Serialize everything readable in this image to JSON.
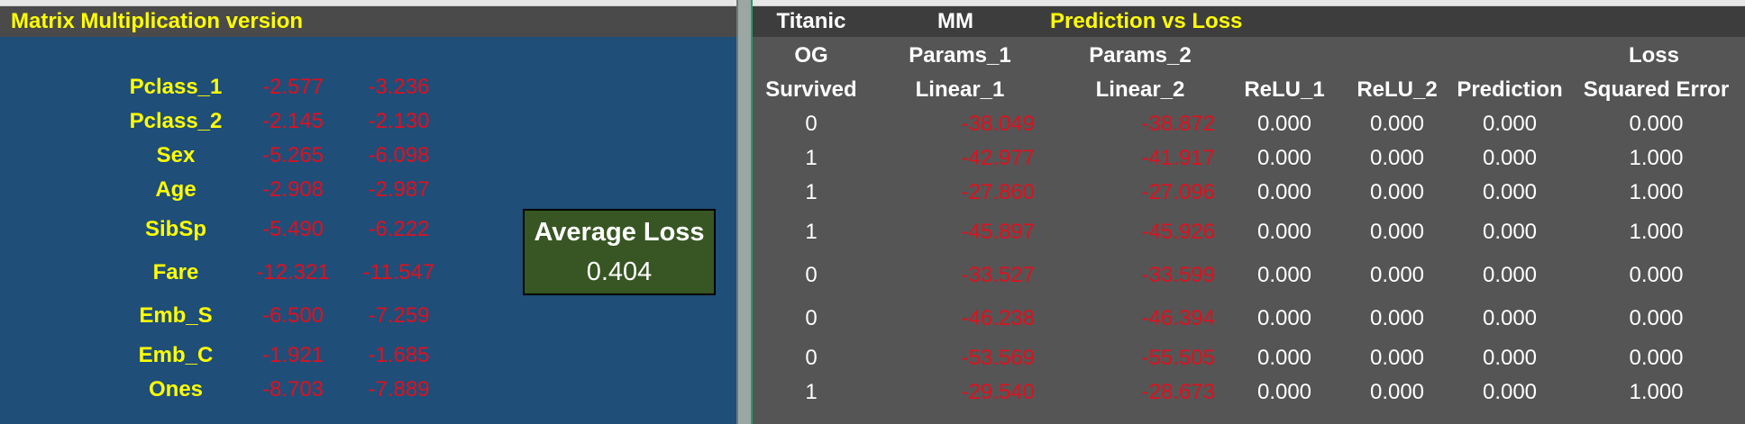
{
  "left": {
    "title": "Matrix Multiplication version",
    "features": [
      {
        "name": "Pclass_1",
        "p1": "-2.577",
        "p2": "-3.236"
      },
      {
        "name": "Pclass_2",
        "p1": "-2.145",
        "p2": "-2.130"
      },
      {
        "name": "Sex",
        "p1": "-5.265",
        "p2": "-6.098"
      },
      {
        "name": "Age",
        "p1": "-2.908",
        "p2": "-2.987"
      },
      {
        "name": "SibSp",
        "p1": "-5.490",
        "p2": "-6.222"
      },
      {
        "name": "Fare",
        "p1": "-12.321",
        "p2": "-11.547"
      },
      {
        "name": "Emb_S",
        "p1": "-6.500",
        "p2": "-7.259"
      },
      {
        "name": "Emb_C",
        "p1": "-1.921",
        "p2": "-1.685"
      },
      {
        "name": "Ones",
        "p1": "-8.703",
        "p2": "-7.889"
      }
    ],
    "average_loss": {
      "label": "Average Loss",
      "value": "0.404"
    }
  },
  "right": {
    "header": {
      "titanic": "Titanic",
      "mm": "MM",
      "title": "Prediction vs Loss"
    },
    "col_top": {
      "og": "OG",
      "params1": "Params_1",
      "params2": "Params_2",
      "loss": "Loss"
    },
    "col_bottom": {
      "survived": "Survived",
      "linear1": "Linear_1",
      "linear2": "Linear_2",
      "relu1": "ReLU_1",
      "relu2": "ReLU_2",
      "prediction": "Prediction",
      "sqerr": "Squared Error"
    },
    "rows": [
      {
        "survived": "0",
        "linear1": "-38.049",
        "linear2": "-38.872",
        "relu1": "0.000",
        "relu2": "0.000",
        "prediction": "0.000",
        "loss": "0.000"
      },
      {
        "survived": "1",
        "linear1": "-42.977",
        "linear2": "-41.917",
        "relu1": "0.000",
        "relu2": "0.000",
        "prediction": "0.000",
        "loss": "1.000"
      },
      {
        "survived": "1",
        "linear1": "-27.860",
        "linear2": "-27.096",
        "relu1": "0.000",
        "relu2": "0.000",
        "prediction": "0.000",
        "loss": "1.000"
      },
      {
        "survived": "1",
        "linear1": "-45.897",
        "linear2": "-45.926",
        "relu1": "0.000",
        "relu2": "0.000",
        "prediction": "0.000",
        "loss": "1.000"
      },
      {
        "survived": "0",
        "linear1": "-33.527",
        "linear2": "-33.599",
        "relu1": "0.000",
        "relu2": "0.000",
        "prediction": "0.000",
        "loss": "0.000"
      },
      {
        "survived": "0",
        "linear1": "-46.238",
        "linear2": "-46.394",
        "relu1": "0.000",
        "relu2": "0.000",
        "prediction": "0.000",
        "loss": "0.000"
      },
      {
        "survived": "0",
        "linear1": "-53.569",
        "linear2": "-55.505",
        "relu1": "0.000",
        "relu2": "0.000",
        "prediction": "0.000",
        "loss": "0.000"
      },
      {
        "survived": "1",
        "linear1": "-29.540",
        "linear2": "-28.673",
        "relu1": "0.000",
        "relu2": "0.000",
        "prediction": "0.000",
        "loss": "1.000"
      }
    ]
  }
}
